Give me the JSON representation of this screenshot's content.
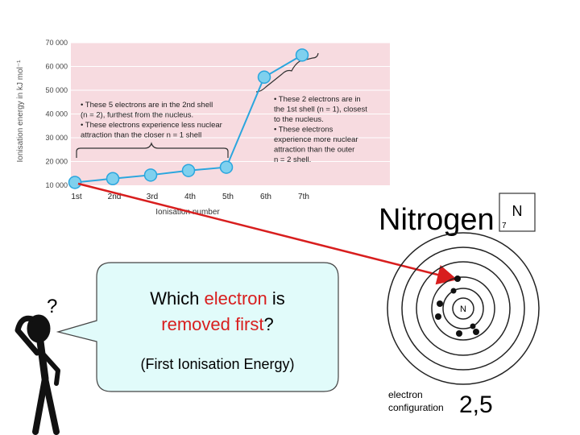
{
  "chart_data": {
    "type": "line",
    "ylabel": "Ionisation energy in kJ mol⁻¹",
    "xlabel": "Ionisation number",
    "ylim": [
      10000,
      70000
    ],
    "yticks": [
      "10 000",
      "20 000",
      "30 000",
      "40 000",
      "50 000",
      "60 000",
      "70 000"
    ],
    "ytick_values": [
      10000,
      20000,
      30000,
      40000,
      50000,
      60000,
      70000
    ],
    "categories": [
      "1st",
      "2nd",
      "3rd",
      "4th",
      "5th",
      "6th",
      "7th"
    ],
    "values": [
      11200,
      12800,
      14300,
      16200,
      17600,
      55500,
      64800
    ],
    "grid": "horizontal",
    "annotations": {
      "left_lines": [
        "• These 5 electrons are in the 2nd shell",
        "   (n = 2), furthest from the nucleus.",
        "• These electrons experience less nuclear",
        "   attraction than the closer n = 1 shell"
      ],
      "right_lines": [
        "• These 2 electrons are in",
        "   the 1st shell (n = 1), closest",
        "   to the nucleus.",
        "• These electrons",
        "   experience more nuclear",
        "   attraction than the outer",
        "   n = 2 shell."
      ]
    }
  },
  "element": {
    "name": "Nitrogen",
    "symbol": "N",
    "atomic_number": "7",
    "nucleus_label": "N",
    "config_label_1": "electron",
    "config_label_2": "configuration",
    "config_value": "2,5"
  },
  "bubble": {
    "q1": "Which ",
    "q1_red": "electron",
    "q1_end": " is",
    "q2_red": "removed first",
    "q2_end": "?",
    "sub": "(First Ionisation Energy)"
  },
  "figure": {
    "question_mark": "?"
  },
  "colors": {
    "line": "#2aa6de",
    "panel": "#f7dbe0",
    "red": "#d81e1e",
    "bubble": "#e1fbfa"
  }
}
